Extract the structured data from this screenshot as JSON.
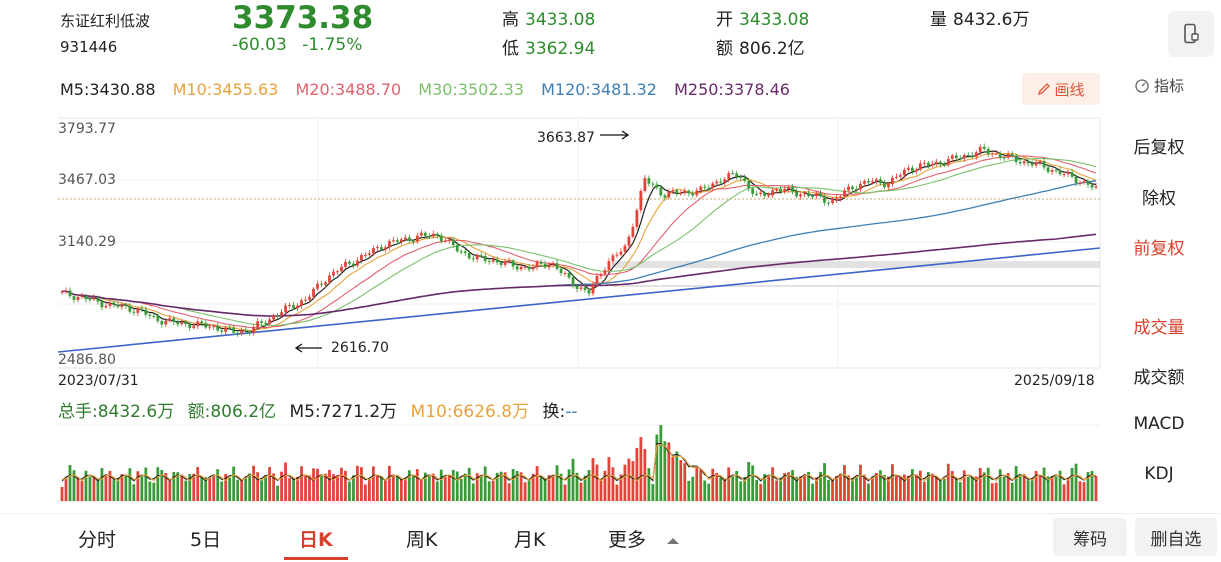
{
  "stock": {
    "name": "东证红利低波",
    "code": "931446",
    "price": "3373.38",
    "change": "-60.03",
    "change_pct": "-1.75%",
    "high_label": "高",
    "high": "3433.08",
    "low_label": "低",
    "low": "3362.94",
    "open_label": "开",
    "open": "3433.08",
    "amount_label": "额",
    "amount": "806.2亿",
    "volume_label": "量",
    "volume": "8432.6万"
  },
  "ma": [
    {
      "label": "M5:3430.88",
      "color": "#222222"
    },
    {
      "label": "M10:3455.63",
      "color": "#e8a33c"
    },
    {
      "label": "M20:3488.70",
      "color": "#e0626e"
    },
    {
      "label": "M30:3502.33",
      "color": "#7cc06a"
    },
    {
      "label": "M120:3481.32",
      "color": "#3f7fb3"
    },
    {
      "label": "M250:3378.46",
      "color": "#6a2a6a"
    }
  ],
  "toolbar": {
    "draw_label": "画线",
    "indicator_label": "指标"
  },
  "chart": {
    "y_labels": [
      "3793.77",
      "3467.03",
      "3140.29",
      "2486.80"
    ],
    "start_date": "2023/07/31",
    "end_date": "2025/09/18",
    "max_annot": "3663.87",
    "min_annot": "2616.70"
  },
  "chart_data": {
    "type": "candlestick",
    "x_range": [
      "2023/07/31",
      "2025/09/18"
    ],
    "ylim": [
      2486.8,
      3793.77
    ],
    "series": [
      {
        "name": "M5",
        "last": 3430.88
      },
      {
        "name": "M10",
        "last": 3455.63
      },
      {
        "name": "M20",
        "last": 3488.7
      },
      {
        "name": "M30",
        "last": 3502.33
      },
      {
        "name": "M120",
        "last": 3481.32
      },
      {
        "name": "M250",
        "last": 3378.46
      }
    ],
    "annotations": [
      {
        "label": "3663.87",
        "type": "high"
      },
      {
        "label": "2616.70",
        "type": "low"
      }
    ],
    "approx_closes": [
      2860,
      2840,
      2810,
      2790,
      2770,
      2720,
      2700,
      2690,
      2680,
      2650,
      2660,
      2720,
      2780,
      2830,
      2940,
      3010,
      3060,
      3120,
      3150,
      3170,
      3180,
      3100,
      3050,
      3040,
      3010,
      3000,
      3030,
      2930,
      2860,
      3030,
      3110,
      3480,
      3400,
      3410,
      3420,
      3480,
      3510,
      3380,
      3430,
      3410,
      3390,
      3360,
      3440,
      3470,
      3460,
      3540,
      3560,
      3580,
      3610,
      3640,
      3610,
      3580,
      3560,
      3520,
      3480,
      3430
    ]
  },
  "volume": {
    "total": "总手:8432.6万",
    "amount": "额:806.2亿",
    "m5": "M5:7271.2万",
    "m10": "M10:6626.8万",
    "swap": "换:--"
  },
  "side_menu": [
    "后复权",
    "除权",
    "前复权",
    "成交量",
    "成交额",
    "MACD",
    "KDJ"
  ],
  "tabs": [
    "分时",
    "5日",
    "日K",
    "周K",
    "月K",
    "更多"
  ],
  "bottom_buttons": [
    "筹码",
    "删自选"
  ],
  "colors": {
    "up": "#e0443a",
    "down": "#3a9a3a",
    "accent": "#d8402b"
  }
}
